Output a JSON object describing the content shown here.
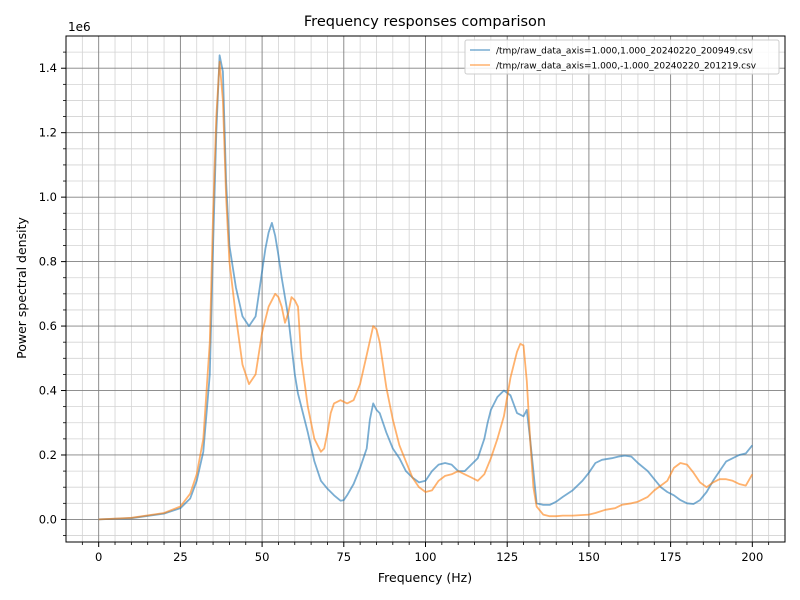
{
  "chart_data": {
    "type": "line",
    "title": "Frequency responses comparison",
    "xlabel": "Frequency (Hz)",
    "ylabel": "Power spectral density",
    "y_scale_label": "1e6",
    "xlim": [
      -10,
      210
    ],
    "ylim": [
      -0.07,
      1.5
    ],
    "x_ticks": [
      0,
      25,
      50,
      75,
      100,
      125,
      150,
      175,
      200
    ],
    "x_tick_labels": [
      "0",
      "25",
      "50",
      "75",
      "100",
      "125",
      "150",
      "175",
      "200"
    ],
    "y_ticks": [
      0.0,
      0.2,
      0.4,
      0.6,
      0.8,
      1.0,
      1.2,
      1.4
    ],
    "y_tick_labels": [
      "0.0",
      "0.2",
      "0.4",
      "0.6",
      "0.8",
      "1.0",
      "1.2",
      "1.4"
    ],
    "grid": {
      "major": true,
      "minor": true
    },
    "legend_position": "top-right",
    "series": [
      {
        "name": "/tmp/raw_data_axis=1.000,1.000_20240220_200949.csv",
        "color": "#1f77b4",
        "points": [
          [
            0,
            0.0
          ],
          [
            10,
            0.004
          ],
          [
            20,
            0.018
          ],
          [
            25,
            0.035
          ],
          [
            28,
            0.065
          ],
          [
            30,
            0.12
          ],
          [
            32,
            0.21
          ],
          [
            34,
            0.45
          ],
          [
            35,
            0.85
          ],
          [
            36,
            1.2
          ],
          [
            37,
            1.44
          ],
          [
            38,
            1.39
          ],
          [
            39,
            1.05
          ],
          [
            40,
            0.85
          ],
          [
            42,
            0.72
          ],
          [
            44,
            0.63
          ],
          [
            46,
            0.6
          ],
          [
            48,
            0.63
          ],
          [
            50,
            0.77
          ],
          [
            51,
            0.84
          ],
          [
            52,
            0.89
          ],
          [
            53,
            0.92
          ],
          [
            54,
            0.88
          ],
          [
            55,
            0.82
          ],
          [
            56,
            0.75
          ],
          [
            58,
            0.63
          ],
          [
            60,
            0.45
          ],
          [
            61,
            0.39
          ],
          [
            62,
            0.35
          ],
          [
            64,
            0.27
          ],
          [
            66,
            0.18
          ],
          [
            68,
            0.12
          ],
          [
            70,
            0.095
          ],
          [
            72,
            0.075
          ],
          [
            74,
            0.058
          ],
          [
            75,
            0.06
          ],
          [
            76,
            0.075
          ],
          [
            78,
            0.11
          ],
          [
            80,
            0.16
          ],
          [
            82,
            0.22
          ],
          [
            83,
            0.31
          ],
          [
            84,
            0.36
          ],
          [
            85,
            0.34
          ],
          [
            86,
            0.33
          ],
          [
            88,
            0.27
          ],
          [
            90,
            0.22
          ],
          [
            92,
            0.19
          ],
          [
            94,
            0.15
          ],
          [
            96,
            0.13
          ],
          [
            98,
            0.115
          ],
          [
            100,
            0.12
          ],
          [
            102,
            0.15
          ],
          [
            104,
            0.17
          ],
          [
            106,
            0.175
          ],
          [
            108,
            0.17
          ],
          [
            110,
            0.15
          ],
          [
            112,
            0.15
          ],
          [
            114,
            0.17
          ],
          [
            116,
            0.19
          ],
          [
            118,
            0.25
          ],
          [
            119,
            0.3
          ],
          [
            120,
            0.34
          ],
          [
            122,
            0.38
          ],
          [
            124,
            0.4
          ],
          [
            126,
            0.385
          ],
          [
            128,
            0.33
          ],
          [
            130,
            0.32
          ],
          [
            131,
            0.34
          ],
          [
            132,
            0.25
          ],
          [
            133,
            0.15
          ],
          [
            134,
            0.05
          ],
          [
            136,
            0.045
          ],
          [
            138,
            0.045
          ],
          [
            140,
            0.055
          ],
          [
            142,
            0.07
          ],
          [
            145,
            0.09
          ],
          [
            148,
            0.12
          ],
          [
            150,
            0.145
          ],
          [
            152,
            0.175
          ],
          [
            154,
            0.185
          ],
          [
            157,
            0.19
          ],
          [
            159,
            0.195
          ],
          [
            161,
            0.198
          ],
          [
            163,
            0.195
          ],
          [
            165,
            0.175
          ],
          [
            168,
            0.15
          ],
          [
            170,
            0.125
          ],
          [
            172,
            0.1
          ],
          [
            174,
            0.085
          ],
          [
            176,
            0.075
          ],
          [
            178,
            0.06
          ],
          [
            180,
            0.05
          ],
          [
            182,
            0.048
          ],
          [
            184,
            0.06
          ],
          [
            186,
            0.085
          ],
          [
            188,
            0.12
          ],
          [
            190,
            0.15
          ],
          [
            192,
            0.18
          ],
          [
            194,
            0.19
          ],
          [
            196,
            0.2
          ],
          [
            198,
            0.205
          ],
          [
            200,
            0.23
          ]
        ]
      },
      {
        "name": "/tmp/raw_data_axis=1.000,-1.000_20240220_201219.csv",
        "color": "#ff7f0e",
        "points": [
          [
            0,
            0.0
          ],
          [
            10,
            0.005
          ],
          [
            20,
            0.02
          ],
          [
            25,
            0.04
          ],
          [
            28,
            0.08
          ],
          [
            30,
            0.14
          ],
          [
            32,
            0.25
          ],
          [
            34,
            0.55
          ],
          [
            35,
            0.95
          ],
          [
            36,
            1.25
          ],
          [
            37,
            1.42
          ],
          [
            38,
            1.3
          ],
          [
            39,
            1.0
          ],
          [
            40,
            0.8
          ],
          [
            42,
            0.63
          ],
          [
            44,
            0.48
          ],
          [
            46,
            0.42
          ],
          [
            48,
            0.45
          ],
          [
            50,
            0.58
          ],
          [
            52,
            0.66
          ],
          [
            54,
            0.7
          ],
          [
            55,
            0.69
          ],
          [
            56,
            0.66
          ],
          [
            57,
            0.61
          ],
          [
            58,
            0.64
          ],
          [
            59,
            0.69
          ],
          [
            60,
            0.68
          ],
          [
            61,
            0.66
          ],
          [
            62,
            0.5
          ],
          [
            64,
            0.35
          ],
          [
            66,
            0.25
          ],
          [
            68,
            0.21
          ],
          [
            69,
            0.22
          ],
          [
            70,
            0.27
          ],
          [
            71,
            0.33
          ],
          [
            72,
            0.36
          ],
          [
            74,
            0.37
          ],
          [
            76,
            0.36
          ],
          [
            78,
            0.37
          ],
          [
            80,
            0.42
          ],
          [
            82,
            0.51
          ],
          [
            84,
            0.6
          ],
          [
            85,
            0.59
          ],
          [
            86,
            0.55
          ],
          [
            88,
            0.41
          ],
          [
            90,
            0.31
          ],
          [
            92,
            0.23
          ],
          [
            94,
            0.18
          ],
          [
            96,
            0.13
          ],
          [
            98,
            0.1
          ],
          [
            100,
            0.085
          ],
          [
            102,
            0.09
          ],
          [
            104,
            0.12
          ],
          [
            106,
            0.135
          ],
          [
            108,
            0.14
          ],
          [
            110,
            0.15
          ],
          [
            112,
            0.14
          ],
          [
            114,
            0.13
          ],
          [
            116,
            0.12
          ],
          [
            118,
            0.14
          ],
          [
            120,
            0.19
          ],
          [
            122,
            0.25
          ],
          [
            124,
            0.32
          ],
          [
            126,
            0.44
          ],
          [
            128,
            0.52
          ],
          [
            129,
            0.545
          ],
          [
            130,
            0.54
          ],
          [
            131,
            0.43
          ],
          [
            132,
            0.25
          ],
          [
            133,
            0.1
          ],
          [
            134,
            0.04
          ],
          [
            136,
            0.015
          ],
          [
            138,
            0.01
          ],
          [
            140,
            0.01
          ],
          [
            142,
            0.012
          ],
          [
            145,
            0.012
          ],
          [
            150,
            0.015
          ],
          [
            152,
            0.02
          ],
          [
            155,
            0.03
          ],
          [
            158,
            0.035
          ],
          [
            160,
            0.045
          ],
          [
            163,
            0.05
          ],
          [
            165,
            0.055
          ],
          [
            168,
            0.07
          ],
          [
            170,
            0.09
          ],
          [
            172,
            0.105
          ],
          [
            174,
            0.12
          ],
          [
            176,
            0.16
          ],
          [
            178,
            0.175
          ],
          [
            180,
            0.17
          ],
          [
            182,
            0.145
          ],
          [
            184,
            0.115
          ],
          [
            186,
            0.1
          ],
          [
            188,
            0.115
          ],
          [
            190,
            0.125
          ],
          [
            192,
            0.125
          ],
          [
            194,
            0.12
          ],
          [
            196,
            0.11
          ],
          [
            198,
            0.105
          ],
          [
            200,
            0.14
          ]
        ]
      }
    ]
  }
}
